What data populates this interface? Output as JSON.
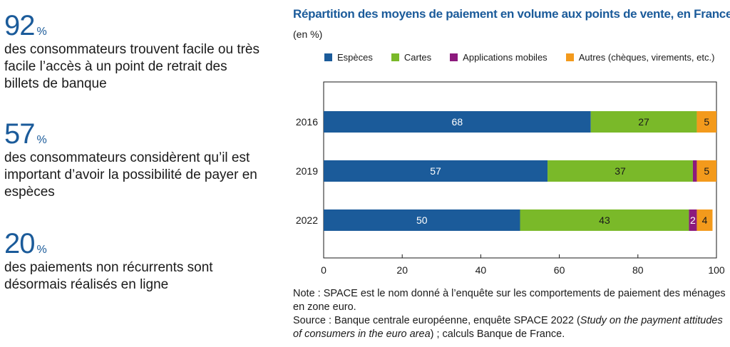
{
  "stats": [
    {
      "value": "92",
      "unit": "%",
      "text": "des consommateurs trouvent facile ou très facile l’accès à un point de retrait des billets de banque"
    },
    {
      "value": "57",
      "unit": "%",
      "text": "des consommateurs considèrent qu’il est important d’avoir la possibilité de payer en espèces"
    },
    {
      "value": "20",
      "unit": "%",
      "text": "des paiements non récurrents sont désormais réalisés en ligne"
    }
  ],
  "chart_data": {
    "type": "bar",
    "orientation": "horizontal",
    "stacked": true,
    "title": "Répartition des moyens de paiement en volume aux points de vente, en France",
    "subtitle": "(en %)",
    "categories": [
      "2016",
      "2019",
      "2022"
    ],
    "series": [
      {
        "name": "Espèces",
        "color": "#1b5b9a",
        "values": [
          68,
          57,
          50
        ]
      },
      {
        "name": "Cartes",
        "color": "#7ab929",
        "values": [
          27,
          37,
          43
        ]
      },
      {
        "name": "Applications mobiles",
        "color": "#8c1a7d",
        "values": [
          0,
          1,
          2
        ]
      },
      {
        "name": "Autres (chèques, virements, etc.)",
        "color": "#f39a1c",
        "values": [
          5,
          5,
          4
        ]
      }
    ],
    "data_labels": [
      [
        "68",
        "27",
        "",
        "5"
      ],
      [
        "57",
        "37",
        "",
        "5"
      ],
      [
        "50",
        "43",
        "2",
        "4"
      ]
    ],
    "xlim": [
      0,
      100
    ],
    "xticks": [
      "0",
      "20",
      "40",
      "60",
      "80",
      "100"
    ],
    "legend_position": "top",
    "grid": false
  },
  "note": {
    "line1": "Note : SPACE est le nom donné à l’enquête sur les comportements de paiement des ménages en zone euro.",
    "source_prefix": "Source : Banque centrale européenne, enquête SPACE 2022 (",
    "source_italic": "Study on the payment attitudes of consumers in the euro area",
    "source_suffix": ") ; calculs Banque de France."
  }
}
